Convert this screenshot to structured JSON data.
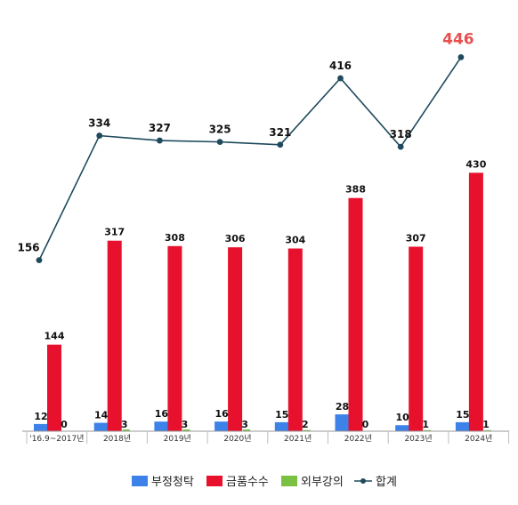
{
  "chart_data": {
    "type": "bar",
    "categories": [
      "'16.9~2017년",
      "2018년",
      "2019년",
      "2020년",
      "2021년",
      "2022년",
      "2023년",
      "2024년"
    ],
    "series": [
      {
        "name": "부정청탁",
        "type": "bar",
        "color": "#3d82e8",
        "values": [
          12,
          14,
          16,
          16,
          15,
          28,
          10,
          15
        ]
      },
      {
        "name": "금품수수",
        "type": "bar",
        "color": "#e8112d",
        "values": [
          144,
          317,
          308,
          306,
          304,
          388,
          307,
          430
        ]
      },
      {
        "name": "외부강의",
        "type": "bar",
        "color": "#7ac143",
        "values": [
          0,
          3,
          3,
          3,
          2,
          0,
          1,
          1
        ]
      },
      {
        "name": "합계",
        "type": "line",
        "color": "#1e4a5c",
        "values": [
          156,
          334,
          327,
          325,
          321,
          416,
          318,
          446
        ]
      }
    ],
    "highlight_color": "#e85050",
    "legend_position": "bottom",
    "grid": false
  }
}
